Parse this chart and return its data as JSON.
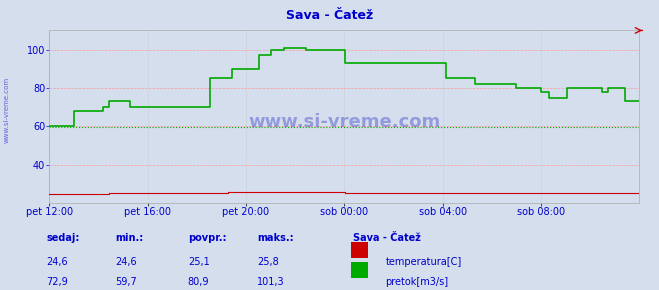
{
  "title": "Sava - Čatež",
  "bg_color": "#d4deed",
  "plot_bg_color": "#d4deed",
  "grid_color_h": "#ff9999",
  "grid_color_v": "#cccccc",
  "temp_color": "#cc0000",
  "flow_color": "#00aa00",
  "ylim": [
    20,
    110
  ],
  "yticks": [
    40,
    60,
    80,
    100
  ],
  "ylabel_color": "#0000cc",
  "title_color": "#0000cc",
  "watermark": "www.si-vreme.com",
  "watermark_color": "#0000bb",
  "left_label": "www.si-vreme.com",
  "tick_labels": [
    "pet 12:00",
    "pet 16:00",
    "pet 20:00",
    "sob 00:00",
    "sob 04:00",
    "sob 08:00"
  ],
  "tick_positions": [
    0.0,
    0.1667,
    0.3333,
    0.5,
    0.6667,
    0.8333
  ],
  "n_points": 288,
  "labels_row": [
    "sedaj:",
    "min.:",
    "povpr.:",
    "maks.:"
  ],
  "temp_vals": [
    "24,6",
    "24,6",
    "25,1",
    "25,8"
  ],
  "flow_vals": [
    "72,9",
    "59,7",
    "80,9",
    "101,3"
  ],
  "legend_title": "Sava - Čatež",
  "legend_temp": "temperatura[C]",
  "legend_flow": "pretok[m3/s]",
  "temp_color_legend": "#cc0000",
  "flow_color_legend": "#00aa00"
}
